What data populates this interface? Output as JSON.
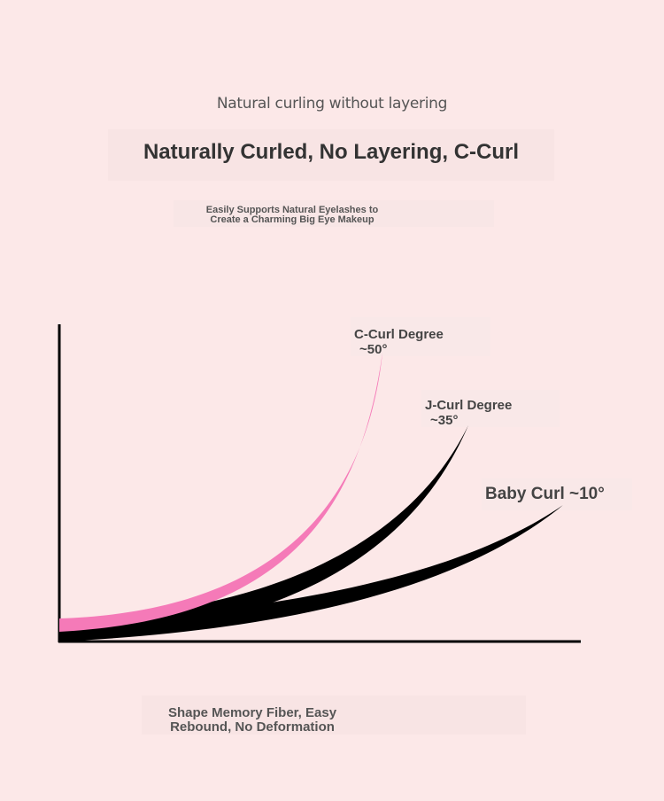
{
  "header": {
    "subtitle": "Natural curling without layering",
    "title": "Naturally Curled, No Layering, C-Curl",
    "description_line1": "Easily Supports Natural Eyelashes to",
    "description_line2": "Create a Charming Big Eye Makeup"
  },
  "curves": [
    {
      "name_line1": "C-Curl Degree",
      "name_line2": "~50°",
      "color": "#f57ab8"
    },
    {
      "name_line1": "J-Curl Degree",
      "name_line2": "~35°",
      "color": "#000000"
    },
    {
      "name_line1": "Baby Curl ~10°",
      "color": "#000000"
    }
  ],
  "footer": {
    "line1": "Shape Memory Fiber, Easy",
    "line2": "Rebound, No Deformation"
  }
}
